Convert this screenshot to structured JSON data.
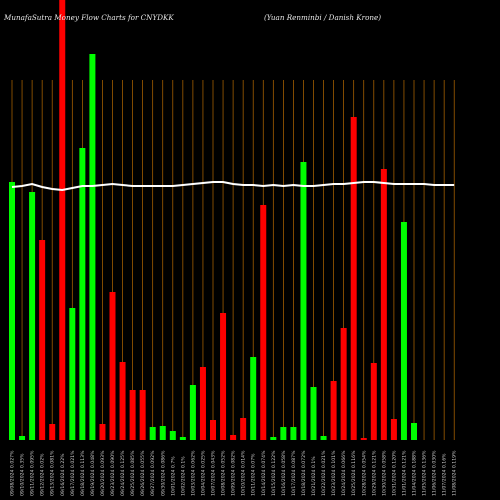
{
  "chart_data": {
    "type": "bar",
    "title": "MunafaSutra Money Flow Charts for CNYDKK",
    "subtitle": "(Yuan Renminbi / Danish Krone)",
    "categories": [
      "09/08/2024 0.027%",
      "09/10/2024 0.35%",
      "09/11/2024 0.095%",
      "09/12/2024 0.02%",
      "09/13/2024 0.081%",
      "09/16/2024 0.22%",
      "09/17/2024 0.021%",
      "09/18/2024 0.113%",
      "09/19/2024 0.048%",
      "09/20/2024 0.093%",
      "09/23/2024 0.090%",
      "09/24/2024 0.125%",
      "09/25/2024 0.085%",
      "09/26/2024 0.055%",
      "09/27/2024 0.092%",
      "09/30/2024 0.086%",
      "10/01/2024 0.7%",
      "10/02/2024 0.1%",
      "10/03/2024 0.062%",
      "10/04/2024 0.025%",
      "10/07/2024 0.043%",
      "10/08/2024 0.052%",
      "10/09/2024 0.082%",
      "10/10/2024 0.014%",
      "10/11/2024 0.07%",
      "10/14/2024 0.074%",
      "10/15/2024 0.122%",
      "10/16/2024 0.058%",
      "10/17/2024 0.087%",
      "10/18/2024 0.072%",
      "10/21/2024 0.1%",
      "10/22/2024 0.021%",
      "10/23/2024 0.101%",
      "10/24/2024 0.066%",
      "10/25/2024 0.116%",
      "10/28/2024 0.054%",
      "10/29/2024 0.121%",
      "10/30/2024 0.058%",
      "10/31/2024 0.120%",
      "11/01/2024 0.121%",
      "11/04/2024 0.188%",
      "11/05/2024 0.136%",
      "11/06/2024 0.030%",
      "11/07/2024 0.16%",
      "11/08/2024 0.119%"
    ],
    "values": [
      258,
      4,
      248,
      200,
      16,
      460,
      132,
      292,
      386,
      16,
      148,
      78,
      50,
      50,
      13,
      14,
      9,
      3,
      55,
      73,
      20,
      127,
      5,
      22,
      83,
      235,
      3,
      13,
      13,
      278,
      53,
      4,
      59,
      112,
      323,
      2,
      77,
      271,
      21,
      218,
      17,
      0,
      0,
      0,
      0
    ],
    "colors": [
      "#00ff00",
      "#00ff00",
      "#00ff00",
      "#ff0000",
      "#ff0000",
      "#ff0000",
      "#00ff00",
      "#00ff00",
      "#00ff00",
      "#ff0000",
      "#ff0000",
      "#ff0000",
      "#ff0000",
      "#ff0000",
      "#00ff00",
      "#00ff00",
      "#00ff00",
      "#00ff00",
      "#00ff00",
      "#ff0000",
      "#ff0000",
      "#ff0000",
      "#ff0000",
      "#ff0000",
      "#00ff00",
      "#ff0000",
      "#00ff00",
      "#00ff00",
      "#00ff00",
      "#00ff00",
      "#00ff00",
      "#00ff00",
      "#ff0000",
      "#ff0000",
      "#ff0000",
      "#ff0000",
      "#ff0000",
      "#ff0000",
      "#ff0000",
      "#00ff00",
      "#00ff00",
      "#00ff00",
      "#00ff00",
      "#00ff00",
      "#00ff00"
    ],
    "line": [
      253,
      254,
      256,
      253,
      251,
      250,
      252,
      254,
      254,
      255,
      256,
      255,
      254,
      254,
      254,
      254,
      254,
      255,
      256,
      257,
      258,
      258,
      256,
      255,
      255,
      254,
      255,
      254,
      255,
      254,
      254,
      255,
      256,
      256,
      257,
      258,
      258,
      257,
      256,
      256,
      256,
      256,
      255,
      255,
      255
    ],
    "ylim": [
      0,
      440
    ],
    "grid": true,
    "accent_line_color": "#ffffff",
    "grid_color": "#b86a00"
  }
}
